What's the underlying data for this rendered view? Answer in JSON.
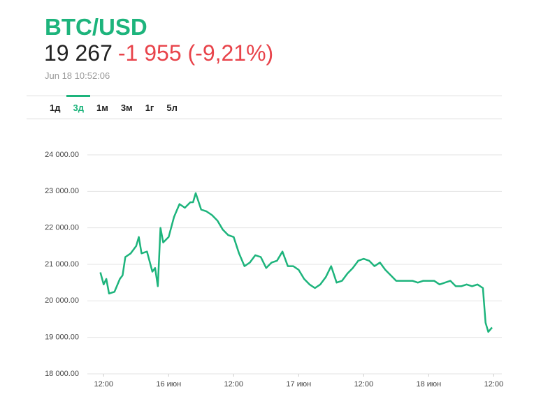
{
  "header": {
    "title": "BTC/USD",
    "price": "19 267",
    "change": "-1 955 (-9,21%)",
    "timestamp": "Jun 18 10:52:06",
    "tabs": [
      "1д",
      "3д",
      "1м",
      "3м",
      "1г",
      "5л"
    ],
    "active_tab": 1
  },
  "chart_data": {
    "type": "line",
    "color": "#1db47c",
    "grid": true,
    "x": [
      -0.6,
      0,
      0.5,
      1,
      2,
      3,
      3.5,
      4,
      5,
      6,
      6.5,
      7,
      8,
      9,
      9.5,
      10,
      10.5,
      11,
      12,
      13,
      14,
      15,
      16,
      16.5,
      17,
      18,
      19,
      20,
      21,
      22,
      23,
      24,
      25,
      26,
      27,
      28,
      29,
      30,
      31,
      32,
      33,
      34,
      35,
      36,
      37,
      38,
      39,
      40,
      41,
      42,
      43,
      44,
      45,
      46,
      47,
      48,
      49,
      50,
      51,
      52,
      53,
      54,
      55,
      56,
      57,
      58,
      59,
      60,
      61,
      62,
      63,
      64,
      65,
      66,
      67,
      68,
      69,
      70,
      70.5,
      71,
      71.7
    ],
    "values": [
      20780,
      20450,
      20600,
      20200,
      20250,
      20600,
      20700,
      21200,
      21300,
      21500,
      21750,
      21300,
      21350,
      20800,
      20900,
      20400,
      22000,
      21600,
      21750,
      22300,
      22650,
      22550,
      22700,
      22700,
      22950,
      22500,
      22450,
      22350,
      22200,
      21950,
      21800,
      21750,
      21300,
      20950,
      21050,
      21250,
      21200,
      20900,
      21050,
      21100,
      21350,
      20950,
      20950,
      20850,
      20600,
      20450,
      20350,
      20450,
      20650,
      20950,
      20500,
      20550,
      20750,
      20900,
      21100,
      21150,
      21100,
      20950,
      21050,
      20850,
      20700,
      20550,
      20550,
      20550,
      20550,
      20500,
      20550,
      20550,
      20550,
      20450,
      20500,
      20550,
      20400,
      20400,
      20450,
      20400,
      20450,
      20350,
      19400,
      19150,
      19270
    ],
    "xlim": [
      -3,
      73.5
    ],
    "xticks": [
      {
        "value": 0,
        "label": "12:00"
      },
      {
        "value": 12,
        "label": "16 июн"
      },
      {
        "value": 24,
        "label": "12:00"
      },
      {
        "value": 36,
        "label": "17 июн"
      },
      {
        "value": 48,
        "label": "12:00"
      },
      {
        "value": 60,
        "label": "18 июн"
      },
      {
        "value": 72,
        "label": "12:00"
      }
    ],
    "ylim": [
      18000,
      24000
    ],
    "yticks": [
      {
        "value": 18000,
        "label": "18 000.00"
      },
      {
        "value": 19000,
        "label": "19 000.00"
      },
      {
        "value": 20000,
        "label": "20 000.00"
      },
      {
        "value": 21000,
        "label": "21 000.00"
      },
      {
        "value": 22000,
        "label": "22 000.00"
      },
      {
        "value": 23000,
        "label": "23 000.00"
      },
      {
        "value": 24000,
        "label": "24 000.00"
      }
    ]
  }
}
